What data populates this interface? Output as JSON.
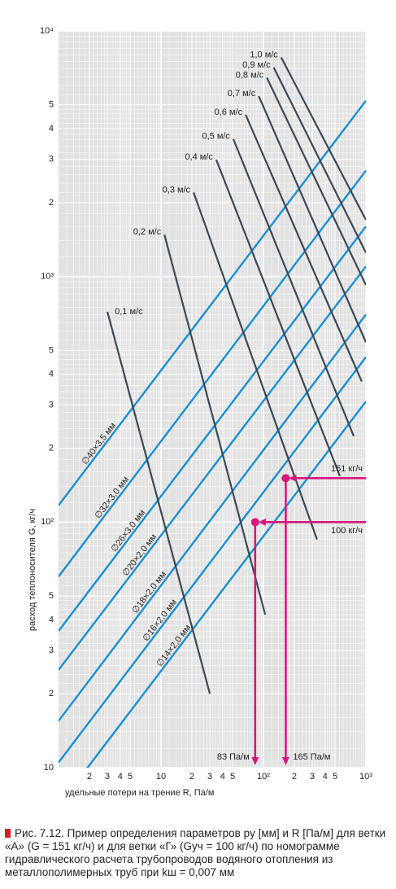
{
  "chart_data": {
    "type": "nomogram",
    "x_label": "удельные потери на трение R, Па/м",
    "y_label": "расход теплоносителя G, кг/ч",
    "log": true,
    "grid": true,
    "xlim": [
      1,
      1000
    ],
    "ylim": [
      10,
      10000
    ],
    "xticks": [
      2,
      3,
      4,
      5,
      10,
      {
        "value": 20,
        "label": "2"
      },
      {
        "value": 30,
        "label": "3"
      },
      {
        "value": 40,
        "label": "4"
      },
      {
        "value": 50,
        "label": "5"
      },
      {
        "value": 100,
        "label": "10²"
      },
      {
        "value": 200,
        "label": "2"
      },
      {
        "value": 300,
        "label": "3"
      },
      {
        "value": 400,
        "label": "4"
      },
      {
        "value": 500,
        "label": "5"
      },
      {
        "value": 1000,
        "label": "10³"
      }
    ],
    "yticks": [
      10,
      {
        "value": 20,
        "label": "2"
      },
      {
        "value": 30,
        "label": "3"
      },
      {
        "value": 40,
        "label": "4"
      },
      {
        "value": 50,
        "label": "5"
      },
      {
        "value": 100,
        "label": "10²"
      },
      {
        "value": 200,
        "label": "2"
      },
      {
        "value": 300,
        "label": "3"
      },
      {
        "value": 400,
        "label": "4"
      },
      {
        "value": 500,
        "label": "5"
      },
      {
        "value": 1000,
        "label": "10³"
      },
      {
        "value": 2000,
        "label": "2"
      },
      {
        "value": 3000,
        "label": "3"
      },
      {
        "value": 4000,
        "label": "4"
      },
      {
        "value": 5000,
        "label": "5"
      },
      {
        "value": 10000,
        "label": "10⁴"
      }
    ],
    "pipe_color": "#1a8fd0",
    "pipes": [
      {
        "name": "∅40×3,5 мм",
        "x": [
          1,
          1000
        ],
        "values": [
          117,
          5200
        ]
      },
      {
        "name": "∅32×3,0 мм",
        "x": [
          1,
          1000
        ],
        "values": [
          60,
          2700
        ]
      },
      {
        "name": "∅26×3,0 мм",
        "x": [
          1,
          1000
        ],
        "values": [
          36,
          1600
        ]
      },
      {
        "name": "∅20×2,0 мм",
        "x": [
          1,
          1000
        ],
        "values": [
          25,
          1100
        ]
      },
      {
        "name": "∅18×2,0 мм",
        "x": [
          1,
          1000
        ],
        "values": [
          15.5,
          700
        ]
      },
      {
        "name": "∅16×2,0 мм",
        "x": [
          1,
          1000
        ],
        "values": [
          10.5,
          470
        ]
      },
      {
        "name": "∅14×2,0 мм",
        "x": [
          1,
          1000
        ],
        "values": [
          7,
          310
        ]
      }
    ],
    "velocity_color": "#3b4856",
    "velocities": [
      {
        "name": "0,1 м/с",
        "x": [
          3,
          30
        ],
        "values": [
          718,
          20
        ]
      },
      {
        "name": "0,2 м/с",
        "x": [
          10.8,
          104
        ],
        "values": [
          1480,
          42
        ]
      },
      {
        "name": "0,3 м/с",
        "x": [
          20.8,
          333
        ],
        "values": [
          2200,
          85
        ]
      },
      {
        "name": "0,4 м/с",
        "x": [
          34.6,
          557
        ],
        "values": [
          2990,
          154
        ]
      },
      {
        "name": "0,5 м/с",
        "x": [
          50.8,
          760
        ],
        "values": [
          3630,
          224
        ]
      },
      {
        "name": "0,6 м/с",
        "x": [
          67,
          910
        ],
        "values": [
          4560,
          374
        ]
      },
      {
        "name": "0,7 м/с",
        "x": [
          90,
          1000
        ],
        "values": [
          5430,
          540
        ]
      },
      {
        "name": "0,8 м/с",
        "x": [
          108,
          1000
        ],
        "values": [
          6450,
          923
        ]
      },
      {
        "name": "0,9 м/с",
        "x": [
          126,
          1000
        ],
        "values": [
          7100,
          1250
        ]
      },
      {
        "name": "1,0 м/с",
        "x": [
          149,
          1000
        ],
        "values": [
          7800,
          1700
        ]
      }
    ],
    "example_color": "#d6177c",
    "examples": [
      {
        "x": 165,
        "y": 151,
        "x_label": "165 Па/м",
        "y_label": "151 кг/ч"
      },
      {
        "x": 83,
        "y": 100,
        "x_label": "83 Па/м",
        "y_label": "100 кг/ч"
      }
    ]
  },
  "caption": "Рис. 7.12. Пример определения параметров pу [мм] и R [Па/м] для ветки «А» (G = 151 кг/ч) и для ветки «Г» (Gуч = 100 кг/ч) по номограмме гидравлического расчета трубопроводов водяного отопления из металлополимерных труб при kш = 0,007 мм"
}
